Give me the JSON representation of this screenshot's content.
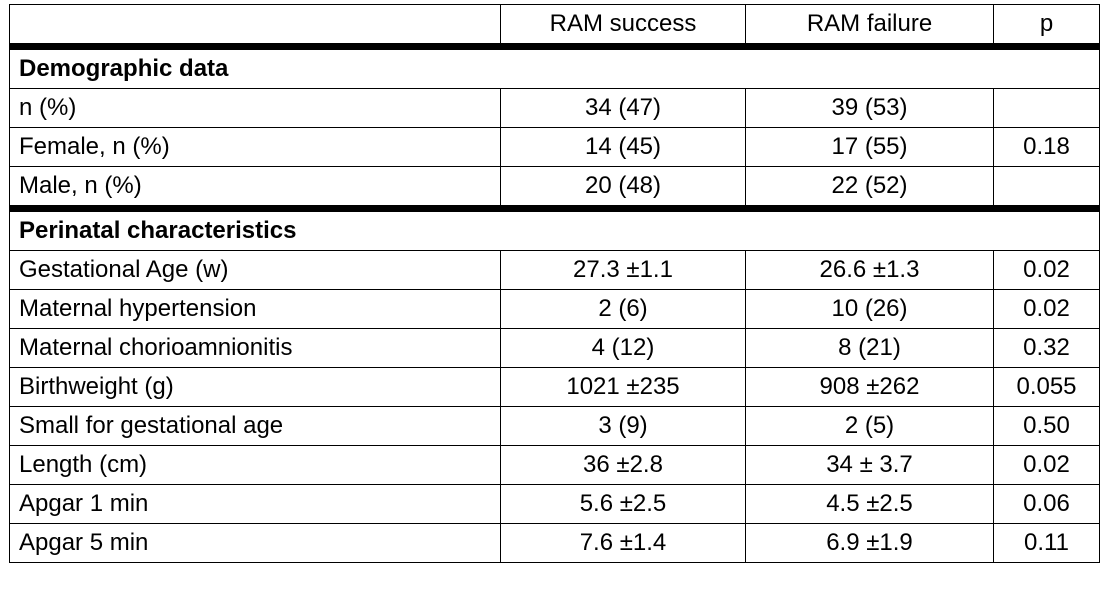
{
  "header": {
    "col_label": "",
    "col_success": "RAM success",
    "col_failure": "RAM failure",
    "col_p": "p"
  },
  "sections": [
    {
      "title": "Demographic data",
      "rows": [
        {
          "label": "n (%)",
          "success": "34 (47)",
          "failure": "39 (53)",
          "p": ""
        },
        {
          "label": "Female, n (%)",
          "success": "14 (45)",
          "failure": "17 (55)",
          "p": "0.18"
        },
        {
          "label": "Male, n (%)",
          "success": "20 (48)",
          "failure": "22 (52)",
          "p": ""
        }
      ]
    },
    {
      "title": "Perinatal characteristics",
      "rows": [
        {
          "label": "Gestational Age (w)",
          "success": "27.3 ±1.1",
          "failure": "26.6 ±1.3",
          "p": "0.02"
        },
        {
          "label": "Maternal hypertension",
          "success": "2 (6)",
          "failure": "10 (26)",
          "p": "0.02"
        },
        {
          "label": "Maternal chorioamnionitis",
          "success": "4 (12)",
          "failure": "8 (21)",
          "p": "0.32"
        },
        {
          "label": "Birthweight (g)",
          "success": "1021 ±235",
          "failure": "908 ±262",
          "p": "0.055"
        },
        {
          "label": "Small for gestational age",
          "success": "3 (9)",
          "failure": "2 (5)",
          "p": "0.50"
        },
        {
          "label": "Length (cm)",
          "success": "36 ±2.8",
          "failure": "34 ± 3.7",
          "p": "0.02"
        },
        {
          "label": "Apgar 1 min",
          "success": "5.6 ±2.5",
          "failure": "4.5 ±2.5",
          "p": "0.06"
        },
        {
          "label": "Apgar 5 min",
          "success": "7.6 ±1.4",
          "failure": "6.9 ±1.9",
          "p": "0.11"
        }
      ]
    }
  ]
}
